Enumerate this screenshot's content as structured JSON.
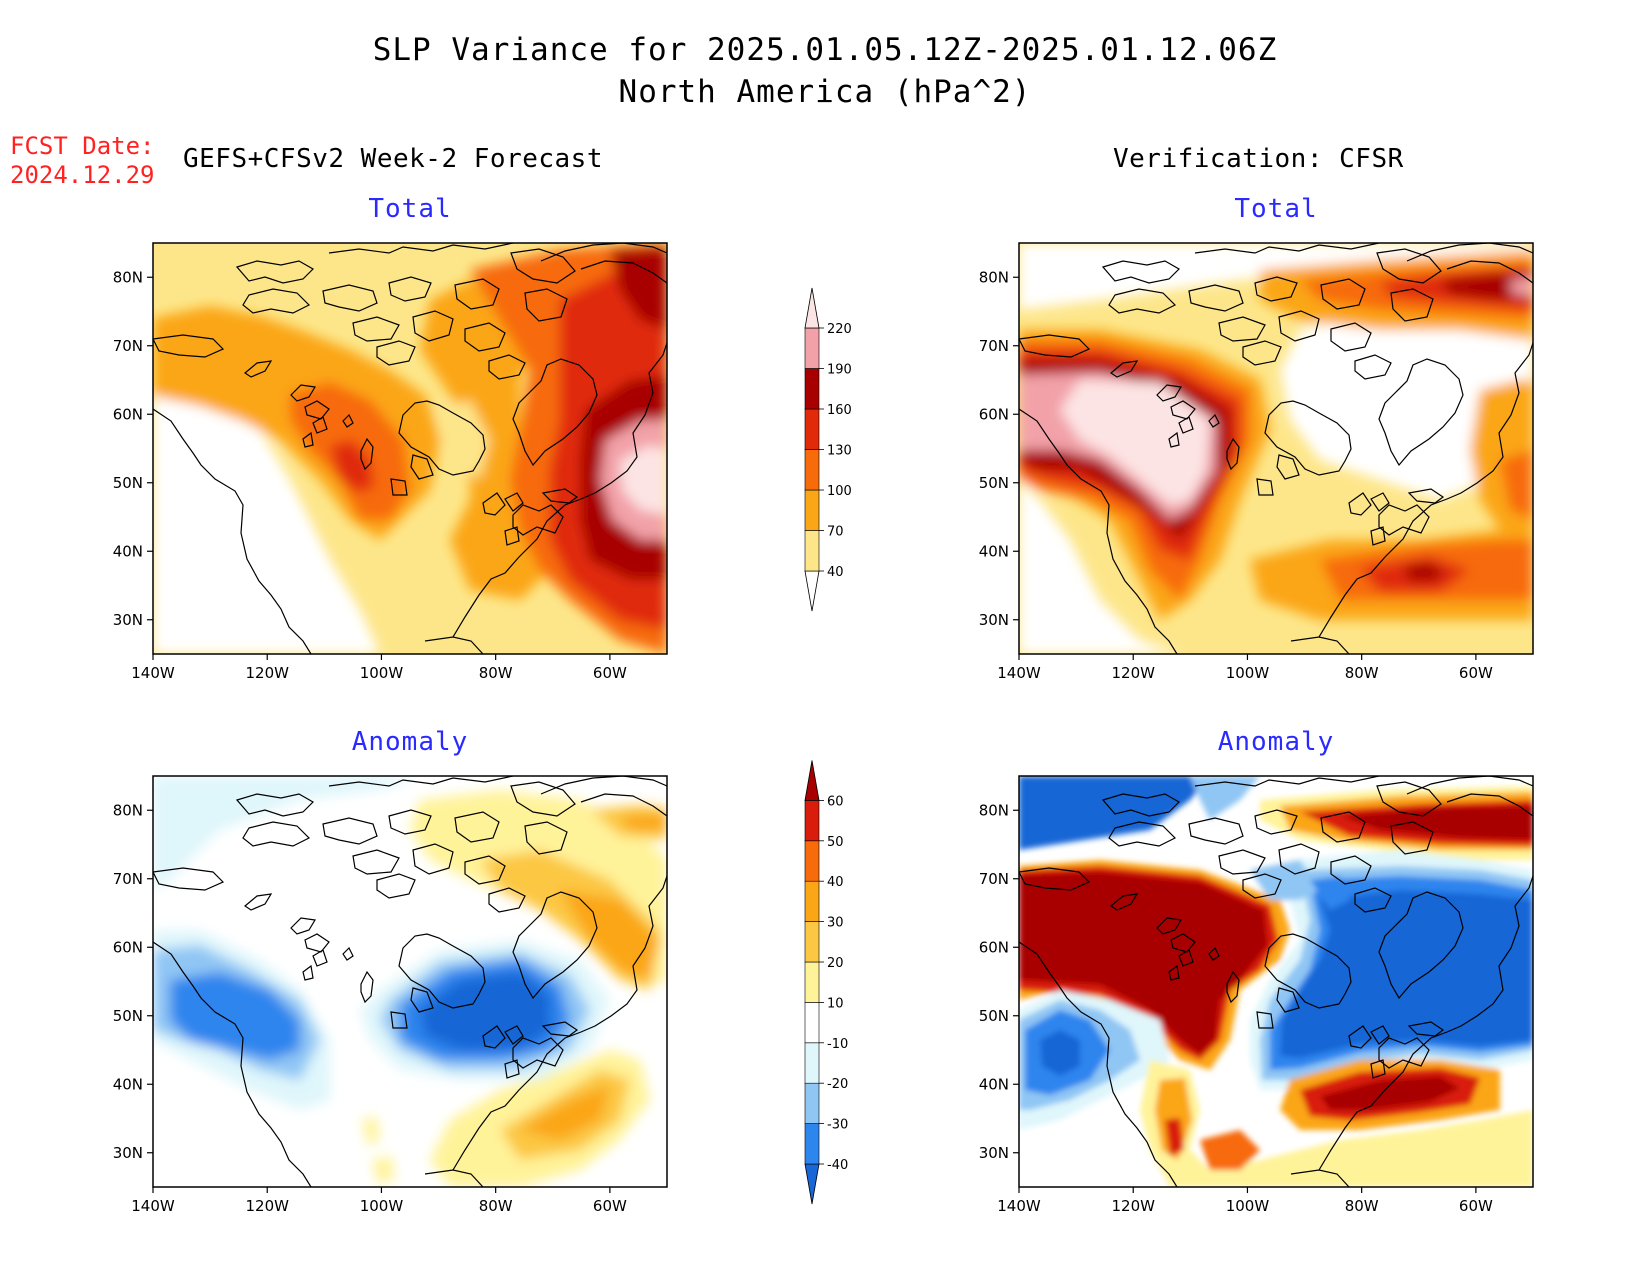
{
  "figure": {
    "title_line1": "SLP Variance for 2025.01.05.12Z-2025.01.12.06Z",
    "title_line2": "North America (hPa^2)",
    "fcst_date_label": "FCST Date:",
    "fcst_date_value": "2024.12.29",
    "left_header": "GEFS+CFSv2 Week-2 Forecast",
    "right_header": "Verification: CFSR"
  },
  "panels": [
    {
      "id": "forecast-total",
      "subtitle": "Total"
    },
    {
      "id": "verification-total",
      "subtitle": "Total"
    },
    {
      "id": "forecast-anomaly",
      "subtitle": "Anomaly"
    },
    {
      "id": "verification-anomaly",
      "subtitle": "Anomaly"
    }
  ],
  "axes": {
    "lon_ticks": [
      "140W",
      "120W",
      "100W",
      "80W",
      "60W"
    ],
    "lat_ticks": [
      "80N",
      "70N",
      "60N",
      "50N",
      "40N",
      "30N"
    ]
  },
  "colorbars": {
    "total": {
      "levels": [
        "40",
        "70",
        "100",
        "130",
        "160",
        "190",
        "220"
      ],
      "colors": [
        "#ffffff",
        "#fde68a",
        "#fba616",
        "#f76b0b",
        "#e02a0a",
        "#a80000",
        "#f2a1a8",
        "#fde4e4"
      ]
    },
    "anomaly": {
      "levels": [
        "-40",
        "-30",
        "-20",
        "-10",
        "10",
        "20",
        "30",
        "40",
        "50",
        "60"
      ],
      "colors": [
        "#1966d6",
        "#2d85ee",
        "#90c6f4",
        "#dff6fb",
        "#ffffff",
        "#fff39a",
        "#fcc742",
        "#fba616",
        "#f76b0b",
        "#d91c0b",
        "#a80000"
      ]
    }
  },
  "chart_data": {
    "type": "heatmap",
    "region": "North America",
    "lon_range": [
      -140,
      -50
    ],
    "lat_range": [
      25,
      85
    ],
    "units": "hPa^2",
    "panels": [
      {
        "name": "GEFS+CFSv2 Week-2 Forecast Total",
        "features": [
          {
            "region": "Newfoundland / Labrador Sea",
            "value_range": "190-220+",
            "max_level": 220
          },
          {
            "region": "Canadian prairies",
            "value_range": "100-130"
          },
          {
            "region": "western US interior",
            "value_range": "<40"
          }
        ]
      },
      {
        "name": "Verification CFSR Total",
        "features": [
          {
            "region": "western Canada / Alaska",
            "value_range": "190-220+"
          },
          {
            "region": "US east coast offshore",
            "value_range": "130-160"
          },
          {
            "region": "eastern Canadian Arctic",
            "value_range": "<40"
          }
        ]
      },
      {
        "name": "GEFS+CFSv2 Week-2 Forecast Anomaly",
        "features": [
          {
            "region": "Great Lakes / Ontario",
            "value_range": "-40 to -30"
          },
          {
            "region": "Pacific Northwest",
            "value_range": "-30 to -20"
          },
          {
            "region": "western Atlantic off Carolinas",
            "value_range": "20-30"
          }
        ]
      },
      {
        "name": "Verification CFSR Anomaly",
        "features": [
          {
            "region": "western Canada",
            "value_range": ">60"
          },
          {
            "region": "eastern Canada / Hudson Bay",
            "value_range": "<-40"
          },
          {
            "region": "US east coast offshore",
            "value_range": "50-60+"
          }
        ]
      }
    ]
  }
}
